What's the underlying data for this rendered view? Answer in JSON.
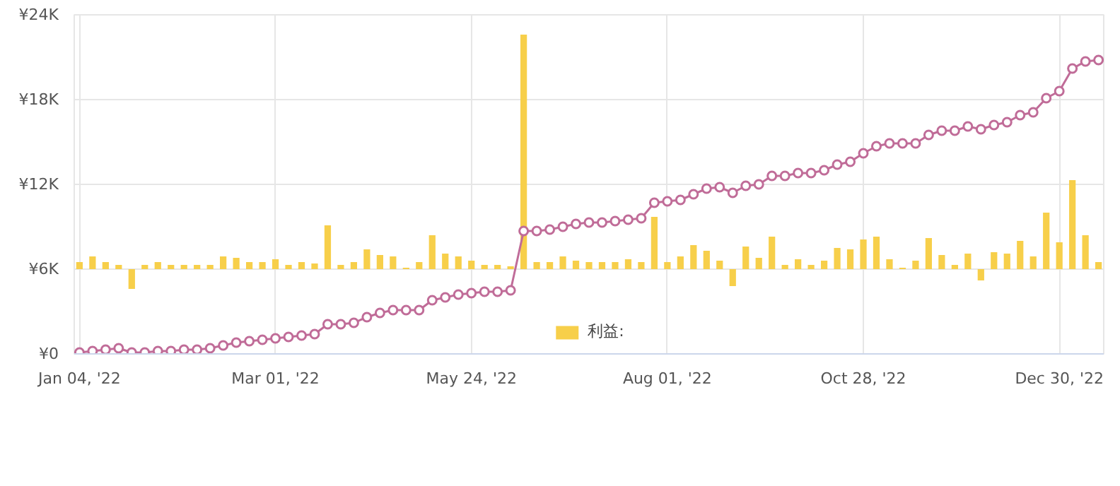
{
  "chart_data": {
    "type": "bar",
    "categories": [
      "Jan 04, '22",
      null,
      null,
      null,
      null,
      null,
      null,
      null,
      null,
      null,
      null,
      null,
      null,
      null,
      null,
      "Mar 01, '22",
      null,
      null,
      null,
      null,
      null,
      null,
      null,
      null,
      null,
      null,
      null,
      null,
      null,
      null,
      "May 24, '22",
      null,
      null,
      null,
      null,
      null,
      null,
      null,
      null,
      null,
      null,
      null,
      null,
      null,
      null,
      "Aug 01, '22",
      null,
      null,
      null,
      null,
      null,
      null,
      null,
      null,
      null,
      null,
      null,
      null,
      null,
      null,
      "Oct 28, '22",
      null,
      null,
      null,
      null,
      null,
      null,
      null,
      null,
      null,
      null,
      null,
      null,
      null,
      null,
      "Dec 30, '22",
      null,
      null,
      null
    ],
    "ylim": [
      0,
      24000
    ],
    "yticks": [
      {
        "value": 0,
        "label": "¥0"
      },
      {
        "value": 6000,
        "label": "¥6K"
      },
      {
        "value": 12000,
        "label": "¥12K"
      },
      {
        "value": 18000,
        "label": "¥18K"
      },
      {
        "value": 24000,
        "label": "¥24K"
      }
    ],
    "grid": true,
    "legend": "bottom",
    "series": [
      {
        "name": "利益:",
        "color": "#f7cf4a",
        "base": [
          6000,
          6000,
          6000,
          6000,
          6000,
          6000,
          6000,
          6000,
          6000,
          6000,
          6000,
          6000,
          6000,
          6000,
          6000,
          6000,
          6000,
          6000,
          6000,
          6000,
          6000,
          6000,
          6000,
          6000,
          6000,
          6000,
          6000,
          6000,
          6000,
          6000,
          6000,
          6000,
          6000,
          6000,
          6000,
          6000,
          6000,
          6000,
          6000,
          6000,
          6000,
          6000,
          6000,
          6000,
          6000,
          6000,
          6000,
          6000,
          6000,
          6000,
          6000,
          6000,
          6000,
          6000,
          6000,
          6000,
          6000,
          6000,
          6000,
          6000,
          6000,
          6000,
          6000,
          6000,
          6000,
          6000,
          6000,
          6000,
          6000,
          6000,
          6000,
          6000,
          6000,
          6000,
          6000,
          6000,
          6000,
          6000,
          6000
        ],
        "values": [
          500,
          900,
          500,
          300,
          -1400,
          300,
          500,
          300,
          300,
          300,
          300,
          900,
          800,
          500,
          500,
          700,
          300,
          500,
          400,
          3100,
          300,
          500,
          1400,
          1000,
          900,
          100,
          500,
          2400,
          1100,
          900,
          600,
          300,
          300,
          200,
          16600,
          500,
          500,
          900,
          600,
          500,
          500,
          500,
          700,
          500,
          3700,
          500,
          900,
          1700,
          1300,
          600,
          -1200,
          1600,
          800,
          2300,
          300,
          700,
          300,
          600,
          1500,
          1400,
          2100,
          2300,
          700,
          100,
          600,
          2200,
          1000,
          300,
          1100,
          -800,
          1200,
          1100,
          2000,
          900,
          4000,
          1900,
          6300,
          2400,
          500
        ]
      },
      {
        "type": "line",
        "color": "#c06c98",
        "marker": "circle",
        "values": [
          100,
          200,
          300,
          400,
          100,
          100,
          200,
          200,
          300,
          300,
          400,
          600,
          800,
          900,
          1000,
          1100,
          1200,
          1300,
          1400,
          2100,
          2100,
          2200,
          2600,
          2900,
          3100,
          3100,
          3100,
          3800,
          4000,
          4200,
          4300,
          4400,
          4400,
          4500,
          8700,
          8700,
          8800,
          9000,
          9200,
          9300,
          9300,
          9400,
          9500,
          9600,
          10700,
          10800,
          10900,
          11300,
          11700,
          11800,
          11400,
          11900,
          12000,
          12600,
          12600,
          12800,
          12800,
          13000,
          13400,
          13600,
          14200,
          14700,
          14900,
          14900,
          14900,
          15500,
          15800,
          15800,
          16100,
          15900,
          16200,
          16400,
          16900,
          17100,
          18100,
          18600,
          20200,
          20700,
          20800
        ]
      }
    ]
  }
}
